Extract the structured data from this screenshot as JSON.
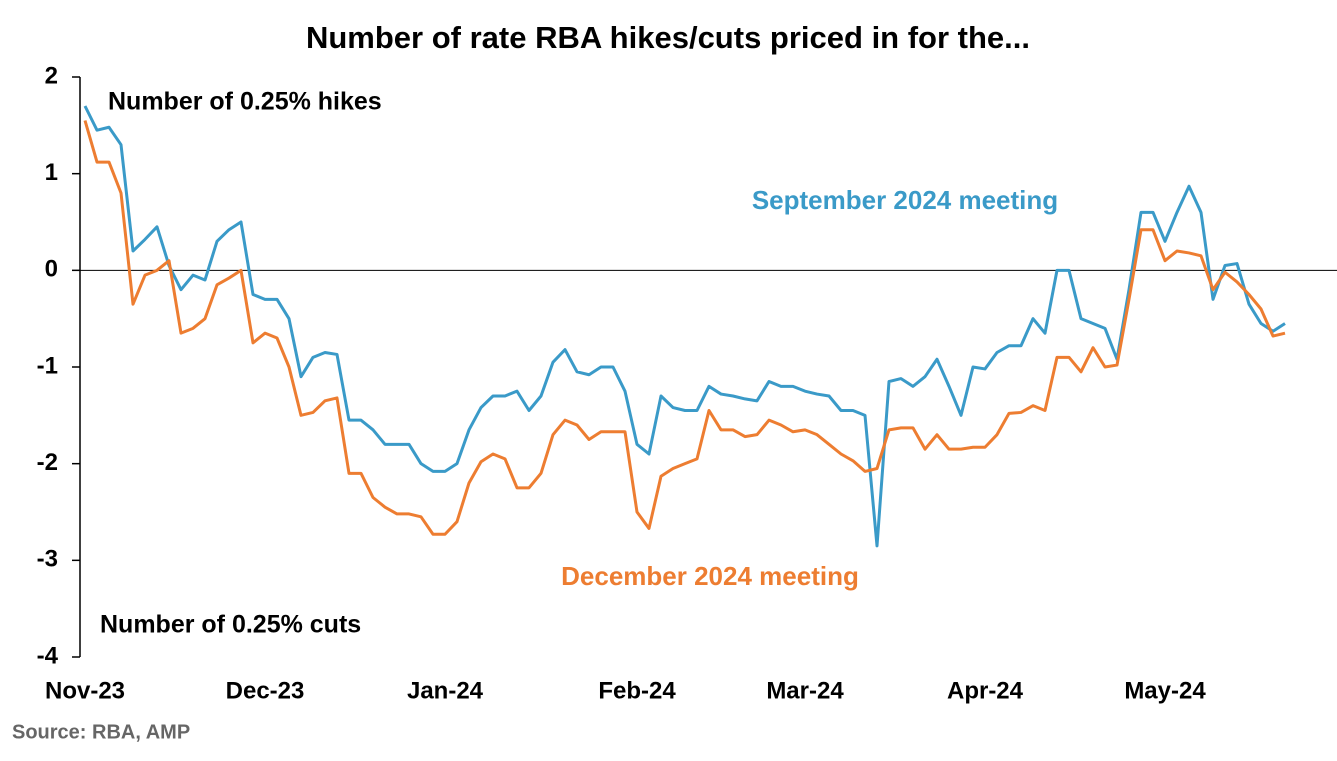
{
  "chart_data": {
    "type": "line",
    "title": "Number of rate RBA hikes/cuts priced in for the...",
    "annotations": [
      "Number of 0.25% hikes",
      "Number of 0.25% cuts"
    ],
    "source": "Source: RBA, AMP",
    "categories": [
      "Nov-23",
      null,
      null,
      null,
      null,
      null,
      null,
      null,
      null,
      null,
      null,
      null,
      null,
      null,
      null,
      "Dec-23",
      null,
      null,
      null,
      null,
      null,
      null,
      null,
      null,
      null,
      null,
      null,
      null,
      null,
      null,
      "Jan-24",
      null,
      null,
      null,
      null,
      null,
      null,
      null,
      null,
      null,
      null,
      null,
      null,
      null,
      null,
      null,
      "Feb-24",
      null,
      null,
      null,
      null,
      null,
      null,
      null,
      null,
      null,
      null,
      null,
      null,
      null,
      "Mar-24",
      null,
      null,
      null,
      null,
      null,
      null,
      null,
      null,
      null,
      null,
      null,
      null,
      null,
      null,
      "Apr-24",
      null,
      null,
      null,
      null,
      null,
      null,
      null,
      null,
      null,
      null,
      null,
      null,
      null,
      null,
      "May-24",
      null,
      null,
      null,
      null,
      null,
      null,
      null,
      null,
      null,
      null
    ],
    "series": [
      {
        "name": "September 2024 meeting",
        "color": "#3a9ac8",
        "values": [
          1.7,
          1.45,
          1.48,
          1.3,
          0.2,
          0.32,
          0.45,
          0.05,
          -0.2,
          -0.05,
          -0.1,
          0.3,
          0.42,
          0.5,
          -0.25,
          -0.3,
          -0.3,
          -0.5,
          -1.1,
          -0.9,
          -0.85,
          -0.87,
          -1.55,
          -1.55,
          -1.65,
          -1.8,
          -1.8,
          -1.8,
          -2.0,
          -2.08,
          -2.08,
          -2.0,
          -1.65,
          -1.42,
          -1.3,
          -1.3,
          -1.25,
          -1.45,
          -1.3,
          -0.95,
          -0.82,
          -1.05,
          -1.08,
          -1.0,
          -1.0,
          -1.25,
          -1.8,
          -1.9,
          -1.3,
          -1.42,
          -1.45,
          -1.45,
          -1.2,
          -1.28,
          -1.3,
          -1.33,
          -1.35,
          -1.15,
          -1.2,
          -1.2,
          -1.25,
          -1.28,
          -1.3,
          -1.45,
          -1.45,
          -1.5,
          -2.85,
          -1.15,
          -1.12,
          -1.2,
          -1.1,
          -0.92,
          -1.2,
          -1.5,
          -1.0,
          -1.02,
          -0.85,
          -0.78,
          -0.78,
          -0.5,
          -0.65,
          0.0,
          0.0,
          -0.5,
          -0.55,
          -0.6,
          -0.92,
          -0.2,
          0.6,
          0.6,
          0.3,
          0.6,
          0.87,
          0.6,
          -0.3,
          0.05,
          0.07,
          -0.35,
          -0.55,
          -0.63,
          -0.55
        ]
      },
      {
        "name": "December 2024 meeting",
        "color": "#ed7d31",
        "values": [
          1.55,
          1.12,
          1.12,
          0.8,
          -0.35,
          -0.05,
          0.0,
          0.1,
          -0.65,
          -0.6,
          -0.5,
          -0.15,
          -0.08,
          0.0,
          -0.75,
          -0.65,
          -0.7,
          -1.0,
          -1.5,
          -1.47,
          -1.35,
          -1.32,
          -2.1,
          -2.1,
          -2.35,
          -2.45,
          -2.52,
          -2.52,
          -2.55,
          -2.73,
          -2.73,
          -2.6,
          -2.2,
          -1.98,
          -1.9,
          -1.95,
          -2.25,
          -2.25,
          -2.1,
          -1.7,
          -1.55,
          -1.6,
          -1.75,
          -1.67,
          -1.67,
          -1.67,
          -2.5,
          -2.67,
          -2.13,
          -2.05,
          -2.0,
          -1.95,
          -1.45,
          -1.65,
          -1.65,
          -1.72,
          -1.7,
          -1.55,
          -1.6,
          -1.67,
          -1.65,
          -1.7,
          -1.8,
          -1.9,
          -1.97,
          -2.08,
          -2.05,
          -1.65,
          -1.63,
          -1.63,
          -1.85,
          -1.7,
          -1.85,
          -1.85,
          -1.83,
          -1.83,
          -1.7,
          -1.48,
          -1.47,
          -1.4,
          -1.45,
          -0.9,
          -0.9,
          -1.05,
          -0.8,
          -1.0,
          -0.98,
          -0.3,
          0.42,
          0.42,
          0.1,
          0.2,
          0.18,
          0.15,
          -0.2,
          -0.02,
          -0.12,
          -0.25,
          -0.4,
          -0.68,
          -0.65
        ]
      }
    ],
    "ylim": [
      -4,
      2
    ],
    "yticks": [
      2,
      1,
      0,
      -1,
      -2,
      -3,
      -4
    ]
  }
}
